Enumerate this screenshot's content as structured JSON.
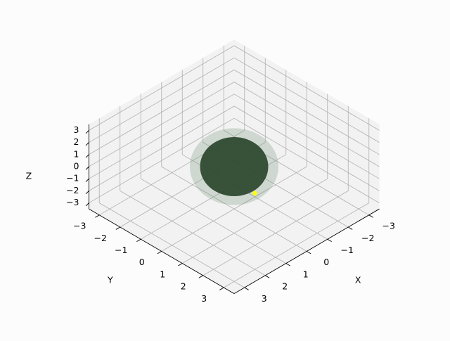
{
  "chart_data": {
    "type": "scatter3d",
    "title": "",
    "view": "isometric",
    "grid": true,
    "axes": {
      "x": {
        "label": "X",
        "ticks": [
          -3,
          -2,
          -1,
          0,
          1,
          2,
          3
        ],
        "tick_labels": [
          "−3",
          "−2",
          "−1",
          "0",
          "1",
          "2",
          "3"
        ]
      },
      "y": {
        "label": "Y",
        "ticks": [
          -3,
          -2,
          -1,
          0,
          1,
          2,
          3
        ],
        "tick_labels": [
          "−3",
          "−2",
          "−1",
          "0",
          "1",
          "2",
          "3"
        ]
      },
      "z": {
        "label": "Z",
        "ticks": [
          -3,
          -2,
          -1,
          0,
          1,
          2,
          3
        ],
        "tick_labels": [
          "−3",
          "−2",
          "−1",
          "0",
          "1",
          "2",
          "3"
        ]
      }
    },
    "surfaces": [
      {
        "shape": "sphere",
        "center": [
          0,
          0,
          0
        ],
        "radius": 1.0,
        "color": "#2f4a30",
        "opacity": 0.95
      },
      {
        "shape": "sphere",
        "center": [
          0,
          0,
          0
        ],
        "radius": 1.3,
        "color": "#7f9a80",
        "opacity": 0.3
      }
    ],
    "points": [
      {
        "x": -1,
        "y": 0,
        "z": -3.2,
        "color": "#ffff00"
      }
    ]
  },
  "colors": {
    "background": "#fcfcfc",
    "grid": "#b0b0b0",
    "axis": "#000000"
  }
}
